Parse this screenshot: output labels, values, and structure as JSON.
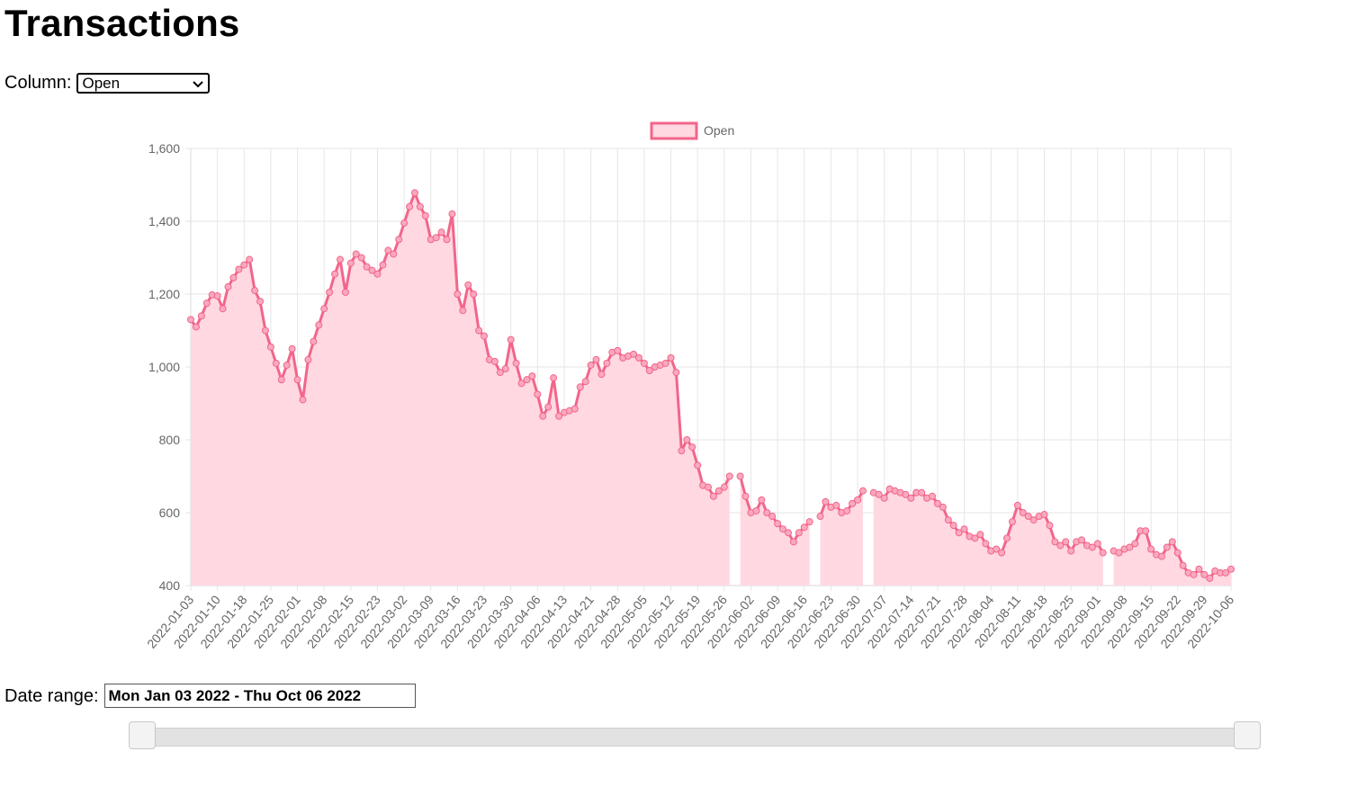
{
  "page": {
    "title": "Transactions",
    "column_label": "Column:",
    "column_selected": "Open",
    "date_range_label": "Date range:",
    "date_range_value": "Mon Jan 03 2022 - Thu Oct 06 2022",
    "slider": {
      "min_fraction": 0.0,
      "max_fraction": 1.0
    }
  },
  "chart_data": {
    "type": "line",
    "title": "",
    "xlabel": "",
    "ylabel": "",
    "ylim": [
      400,
      1600
    ],
    "yticks": [
      400,
      600,
      800,
      1000,
      1200,
      1400,
      1600
    ],
    "ytick_labels": [
      "400",
      "600",
      "800",
      "1,000",
      "1,200",
      "1,400",
      "1,600"
    ],
    "xtick_labels": [
      "2022-01-03",
      "2022-01-10",
      "2022-01-18",
      "2022-01-25",
      "2022-02-01",
      "2022-02-08",
      "2022-02-15",
      "2022-02-23",
      "2022-03-02",
      "2022-03-09",
      "2022-03-16",
      "2022-03-23",
      "2022-03-30",
      "2022-04-06",
      "2022-04-13",
      "2022-04-21",
      "2022-04-28",
      "2022-05-05",
      "2022-05-12",
      "2022-05-19",
      "2022-05-26",
      "2022-06-02",
      "2022-06-09",
      "2022-06-16",
      "2022-06-23",
      "2022-06-30",
      "2022-07-07",
      "2022-07-14",
      "2022-07-21",
      "2022-07-28",
      "2022-08-04",
      "2022-08-11",
      "2022-08-18",
      "2022-08-25",
      "2022-09-01",
      "2022-09-08",
      "2022-09-15",
      "2022-09-22",
      "2022-09-29",
      "2022-10-06"
    ],
    "grid": true,
    "legend_position": "top-center",
    "fill": true,
    "colors": {
      "line": "#f2658b",
      "fill": "#ffd8e1",
      "grid": "#e6e6e6",
      "axis_text": "#666666"
    },
    "series": [
      {
        "name": "Open",
        "values": [
          1130,
          1110,
          1140,
          1175,
          1198,
          1195,
          1160,
          1220,
          1245,
          1268,
          1280,
          1295,
          1210,
          1180,
          1100,
          1055,
          1010,
          965,
          1005,
          1050,
          965,
          910,
          1020,
          1070,
          1115,
          1160,
          1205,
          1255,
          1295,
          1205,
          1285,
          1310,
          1300,
          1275,
          1265,
          1255,
          1280,
          1320,
          1310,
          1350,
          1395,
          1440,
          1478,
          1440,
          1415,
          1350,
          1355,
          1370,
          1350,
          1420,
          1200,
          1155,
          1225,
          1200,
          1100,
          1085,
          1020,
          1015,
          985,
          995,
          1075,
          1010,
          955,
          965,
          975,
          925,
          865,
          890,
          970,
          865,
          875,
          880,
          885,
          945,
          960,
          1005,
          1020,
          980,
          1010,
          1040,
          1045,
          1025,
          1030,
          1035,
          1025,
          1010,
          990,
          1000,
          1005,
          1010,
          1025,
          985,
          770,
          800,
          780,
          730,
          675,
          670,
          645,
          660,
          670,
          700,
          null,
          700,
          645,
          600,
          605,
          635,
          600,
          590,
          570,
          555,
          545,
          520,
          545,
          560,
          575,
          null,
          590,
          630,
          615,
          620,
          600,
          605,
          625,
          635,
          660,
          null,
          655,
          650,
          640,
          665,
          660,
          655,
          650,
          640,
          655,
          655,
          640,
          645,
          625,
          615,
          580,
          565,
          545,
          555,
          535,
          530,
          540,
          515,
          495,
          500,
          490,
          530,
          575,
          620,
          600,
          590,
          580,
          590,
          595,
          565,
          520,
          510,
          520,
          495,
          520,
          525,
          510,
          505,
          515,
          490,
          null,
          495,
          490,
          500,
          505,
          515,
          550,
          550,
          500,
          485,
          480,
          505,
          520,
          490,
          455,
          435,
          430,
          445,
          430,
          420,
          440,
          435,
          435,
          445
        ]
      }
    ]
  }
}
